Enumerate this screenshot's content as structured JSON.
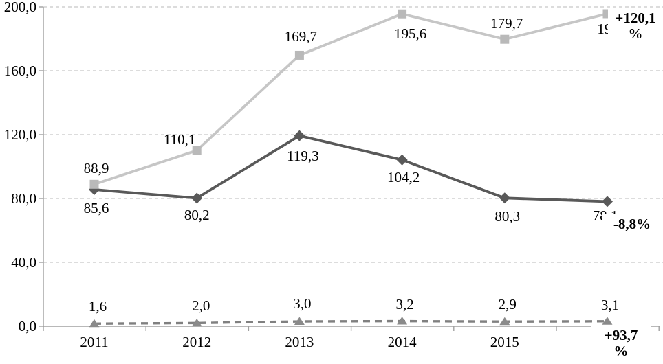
{
  "chart_data": {
    "type": "line",
    "title": "",
    "xlabel": "",
    "ylabel": "",
    "categories": [
      "2011",
      "2012",
      "2013",
      "2014",
      "2015",
      ""
    ],
    "x_tick_labels": [
      "2011",
      "2012",
      "2013",
      "2014",
      "2015"
    ],
    "ylim": [
      0,
      200
    ],
    "y_ticks": [
      {
        "value": 0,
        "label": "0,0"
      },
      {
        "value": 40,
        "label": "40,0"
      },
      {
        "value": 80,
        "label": "80,0"
      },
      {
        "value": 120,
        "label": "120,0"
      },
      {
        "value": 160,
        "label": "160,0"
      },
      {
        "value": 200,
        "label": "200,0"
      }
    ],
    "grid": {
      "horizontal": true,
      "style": "dashed",
      "color": "#c6c6c6"
    },
    "legend": "none",
    "axis_color": "#a0a0a0",
    "text_color": "#000000",
    "series": [
      {
        "name": "upper-light-gray-squares",
        "marker": "square",
        "line_style": "solid",
        "color": "#c6c6c6",
        "marker_color": "#b9b9b9",
        "values": [
          88.9,
          110.1,
          169.7,
          195.6,
          179.7,
          195.7
        ],
        "point_labels": [
          "88,9",
          "110,1",
          "169,7",
          "195,6",
          "179,7",
          "195,7"
        ],
        "trend_annotation": "+120,1 %"
      },
      {
        "name": "middle-dark-gray-diamonds",
        "marker": "diamond",
        "line_style": "solid",
        "color": "#595959",
        "marker_color": "#595959",
        "values": [
          85.6,
          80.2,
          119.3,
          104.2,
          80.3,
          78.1
        ],
        "point_labels": [
          "85,6",
          "80,2",
          "119,3",
          "104,2",
          "80,3",
          "78,1"
        ],
        "trend_annotation": "-8,8%"
      },
      {
        "name": "lower-dashed-gray-triangles",
        "marker": "triangle",
        "line_style": "dashed",
        "color": "#808080",
        "marker_color": "#8a8a8a",
        "values": [
          1.6,
          2.0,
          3.0,
          3.2,
          2.9,
          3.1
        ],
        "point_labels": [
          "1,6",
          "2,0",
          "3,0",
          "3,2",
          "2,9",
          "3,1"
        ],
        "trend_annotation": "+93,7 %"
      }
    ],
    "annotations": [
      {
        "line1": "+120,1",
        "line2": "%"
      },
      {
        "line1": "-8,8%",
        "line2": ""
      },
      {
        "line1": "+93,7",
        "line2": "%"
      }
    ]
  }
}
